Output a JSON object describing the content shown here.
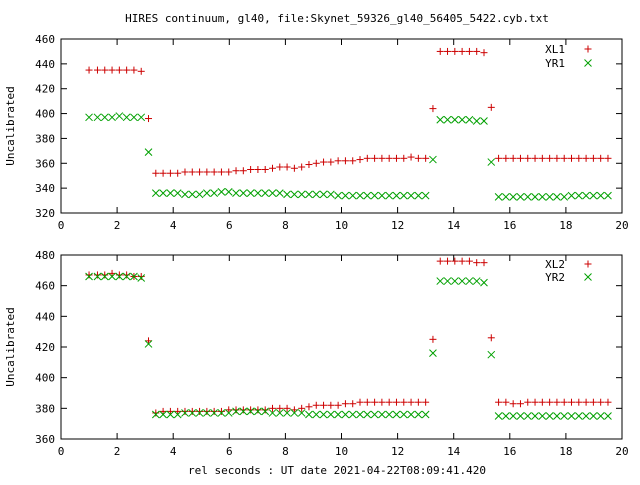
{
  "page": {
    "title": "HIRES continuum, gl40, file:Skynet_59326_gl40_56405_5422.cyb.txt",
    "xlabel": "rel seconds : UT date 2021-04-22T08:09:41.420"
  },
  "colors": {
    "series_a": "#cc0000",
    "series_b": "#00a000"
  },
  "chart_data": [
    {
      "type": "scatter",
      "title": "HIRES continuum, gl40, file:Skynet_59326_gl40_56405_5422.cyb.txt",
      "xlabel": "",
      "ylabel": "Uncalibrated",
      "xlim": [
        0,
        20
      ],
      "ylim": [
        320,
        460
      ],
      "xticks": [
        0,
        2,
        4,
        6,
        8,
        10,
        12,
        14,
        16,
        18,
        20
      ],
      "yticks": [
        320,
        340,
        360,
        380,
        400,
        420,
        440,
        460
      ],
      "grid": false,
      "legend": "top-right",
      "series": [
        {
          "name": "XL1",
          "marker": "plus",
          "x": [
            1.0,
            1.3,
            1.56,
            1.82,
            2.08,
            2.34,
            2.6,
            2.86,
            3.12,
            3.38,
            3.64,
            3.9,
            4.16,
            4.42,
            4.68,
            4.94,
            5.2,
            5.46,
            5.72,
            5.98,
            6.24,
            6.5,
            6.76,
            7.02,
            7.28,
            7.54,
            7.8,
            8.06,
            8.32,
            8.58,
            8.84,
            9.1,
            9.36,
            9.62,
            9.88,
            10.14,
            10.4,
            10.66,
            10.92,
            11.18,
            11.44,
            11.7,
            11.96,
            12.22,
            12.48,
            12.74,
            13.0,
            13.26,
            13.52,
            13.78,
            14.04,
            14.3,
            14.56,
            14.82,
            15.08,
            15.34,
            15.6,
            15.86,
            16.12,
            16.38,
            16.64,
            16.9,
            17.16,
            17.42,
            17.68,
            17.94,
            18.2,
            18.46,
            18.72,
            18.98,
            19.24,
            19.5
          ],
          "y": [
            435,
            435,
            435,
            435,
            435,
            435,
            435,
            434,
            396,
            352,
            352,
            352,
            352,
            353,
            353,
            353,
            353,
            353,
            353,
            353,
            354,
            354,
            355,
            355,
            355,
            356,
            357,
            357,
            356,
            357,
            359,
            360,
            361,
            361,
            362,
            362,
            362,
            363,
            364,
            364,
            364,
            364,
            364,
            364,
            365,
            364,
            364,
            404,
            450,
            450,
            450,
            450,
            450,
            450,
            449,
            405,
            364,
            364,
            364,
            364,
            364,
            364,
            364,
            364,
            364,
            364,
            364,
            364,
            364,
            364,
            364,
            364
          ],
          "_note": "values estimated from plot"
        },
        {
          "name": "YR1",
          "marker": "cross",
          "x": [
            1.0,
            1.3,
            1.56,
            1.82,
            2.08,
            2.34,
            2.6,
            2.86,
            3.12,
            3.38,
            3.64,
            3.9,
            4.16,
            4.42,
            4.68,
            4.94,
            5.2,
            5.46,
            5.72,
            5.98,
            6.24,
            6.5,
            6.76,
            7.02,
            7.28,
            7.54,
            7.8,
            8.06,
            8.32,
            8.58,
            8.84,
            9.1,
            9.36,
            9.62,
            9.88,
            10.14,
            10.4,
            10.66,
            10.92,
            11.18,
            11.44,
            11.7,
            11.96,
            12.22,
            12.48,
            12.74,
            13.0,
            13.26,
            13.52,
            13.78,
            14.04,
            14.3,
            14.56,
            14.82,
            15.08,
            15.34,
            15.6,
            15.86,
            16.12,
            16.38,
            16.64,
            16.9,
            17.16,
            17.42,
            17.68,
            17.94,
            18.2,
            18.46,
            18.72,
            18.98,
            19.24,
            19.5
          ],
          "y": [
            397,
            397,
            397,
            397,
            398,
            397,
            397,
            397,
            369,
            336,
            336,
            336,
            336,
            335,
            335,
            335,
            336,
            336,
            337,
            337,
            336,
            336,
            336,
            336,
            336,
            336,
            336,
            335,
            335,
            335,
            335,
            335,
            335,
            335,
            334,
            334,
            334,
            334,
            334,
            334,
            334,
            334,
            334,
            334,
            334,
            334,
            334,
            363,
            395,
            395,
            395,
            395,
            395,
            394,
            394,
            361,
            333,
            333,
            333,
            333,
            333,
            333,
            333,
            333,
            333,
            333,
            334,
            334,
            334,
            334,
            334,
            334
          ]
        }
      ]
    },
    {
      "type": "scatter",
      "xlabel": "rel seconds : UT date 2021-04-22T08:09:41.420",
      "ylabel": "Uncalibrated",
      "xlim": [
        0,
        20
      ],
      "ylim": [
        360,
        480
      ],
      "xticks": [
        0,
        2,
        4,
        6,
        8,
        10,
        12,
        14,
        16,
        18,
        20
      ],
      "yticks": [
        360,
        380,
        400,
        420,
        440,
        460,
        480
      ],
      "grid": false,
      "legend": "top-right",
      "series": [
        {
          "name": "XL2",
          "marker": "plus",
          "x": [
            1.0,
            1.3,
            1.56,
            1.82,
            2.08,
            2.34,
            2.6,
            2.86,
            3.12,
            3.38,
            3.64,
            3.9,
            4.16,
            4.42,
            4.68,
            4.94,
            5.2,
            5.46,
            5.72,
            5.98,
            6.24,
            6.5,
            6.76,
            7.02,
            7.28,
            7.54,
            7.8,
            8.06,
            8.32,
            8.58,
            8.84,
            9.1,
            9.36,
            9.62,
            9.88,
            10.14,
            10.4,
            10.66,
            10.92,
            11.18,
            11.44,
            11.7,
            11.96,
            12.22,
            12.48,
            12.74,
            13.0,
            13.26,
            13.52,
            13.78,
            14.04,
            14.3,
            14.56,
            14.82,
            15.08,
            15.34,
            15.6,
            15.86,
            16.12,
            16.38,
            16.64,
            16.9,
            17.16,
            17.42,
            17.68,
            17.94,
            18.2,
            18.46,
            18.72,
            18.98,
            19.24,
            19.5
          ],
          "y": [
            467,
            467,
            467,
            468,
            467,
            467,
            466,
            466,
            424,
            377,
            378,
            378,
            378,
            378,
            378,
            378,
            378,
            378,
            378,
            379,
            379,
            379,
            379,
            379,
            379,
            380,
            380,
            380,
            379,
            380,
            381,
            382,
            382,
            382,
            382,
            383,
            383,
            384,
            384,
            384,
            384,
            384,
            384,
            384,
            384,
            384,
            384,
            425,
            476,
            476,
            476,
            476,
            476,
            475,
            475,
            426,
            384,
            384,
            383,
            383,
            384,
            384,
            384,
            384,
            384,
            384,
            384,
            384,
            384,
            384,
            384,
            384
          ]
        },
        {
          "name": "YR2",
          "marker": "cross",
          "x": [
            1.0,
            1.3,
            1.56,
            1.82,
            2.08,
            2.34,
            2.6,
            2.86,
            3.12,
            3.38,
            3.64,
            3.9,
            4.16,
            4.42,
            4.68,
            4.94,
            5.2,
            5.46,
            5.72,
            5.98,
            6.24,
            6.5,
            6.76,
            7.02,
            7.28,
            7.54,
            7.8,
            8.06,
            8.32,
            8.58,
            8.84,
            9.1,
            9.36,
            9.62,
            9.88,
            10.14,
            10.4,
            10.66,
            10.92,
            11.18,
            11.44,
            11.7,
            11.96,
            12.22,
            12.48,
            12.74,
            13.0,
            13.26,
            13.52,
            13.78,
            14.04,
            14.3,
            14.56,
            14.82,
            15.08,
            15.34,
            15.6,
            15.86,
            16.12,
            16.38,
            16.64,
            16.9,
            17.16,
            17.42,
            17.68,
            17.94,
            18.2,
            18.46,
            18.72,
            18.98,
            19.24,
            19.5
          ],
          "y": [
            466,
            466,
            466,
            466,
            466,
            466,
            466,
            465,
            422,
            376,
            376,
            376,
            376,
            377,
            377,
            377,
            377,
            377,
            377,
            377,
            378,
            378,
            378,
            378,
            378,
            377,
            377,
            377,
            377,
            377,
            376,
            376,
            376,
            376,
            376,
            376,
            376,
            376,
            376,
            376,
            376,
            376,
            376,
            376,
            376,
            376,
            376,
            416,
            463,
            463,
            463,
            463,
            463,
            463,
            462,
            415,
            375,
            375,
            375,
            375,
            375,
            375,
            375,
            375,
            375,
            375,
            375,
            375,
            375,
            375,
            375,
            375
          ]
        }
      ]
    }
  ]
}
